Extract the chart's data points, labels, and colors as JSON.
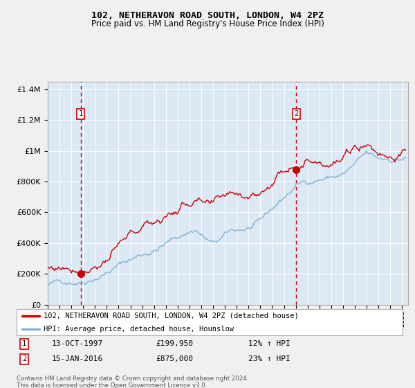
{
  "title": "102, NETHERAVON ROAD SOUTH, LONDON, W4 2PZ",
  "subtitle": "Price paid vs. HM Land Registry's House Price Index (HPI)",
  "bg_color": "#dce9f5",
  "grid_color": "#ffffff",
  "hpi_color": "#7fb3d3",
  "price_color": "#cc0000",
  "marker_color": "#cc0000",
  "vline_color": "#cc0000",
  "sale1_date": 1997.79,
  "sale1_price": 199950,
  "sale2_date": 2016.04,
  "sale2_price": 875000,
  "legend_line1": "102, NETHERAVON ROAD SOUTH, LONDON, W4 2PZ (detached house)",
  "legend_line2": "HPI: Average price, detached house, Hounslow",
  "note1_label": "1",
  "note1_date": "13-OCT-1997",
  "note1_price": "£199,950",
  "note1_hpi": "12% ↑ HPI",
  "note2_label": "2",
  "note2_date": "15-JAN-2016",
  "note2_price": "£875,000",
  "note2_hpi": "23% ↑ HPI",
  "footer": "Contains HM Land Registry data © Crown copyright and database right 2024.\nThis data is licensed under the Open Government Licence v3.0.",
  "ylim": [
    0,
    1450000
  ],
  "xlim_start": 1995.0,
  "xlim_end": 2025.5,
  "fig_bg": "#f0f0f0"
}
